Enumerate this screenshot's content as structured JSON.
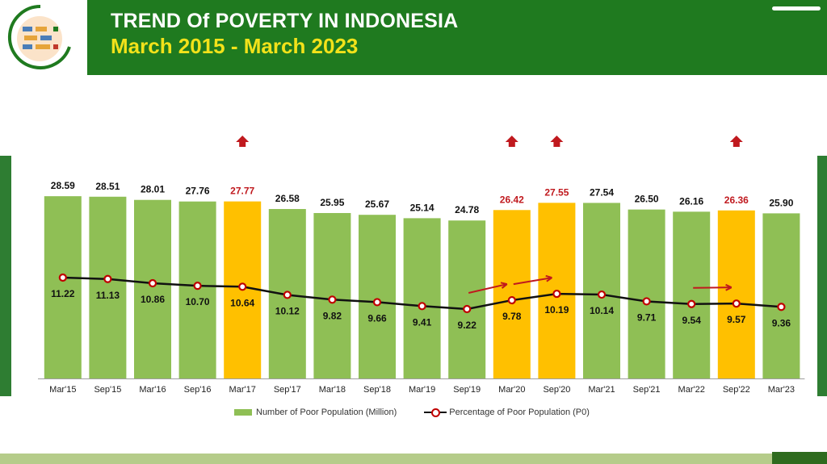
{
  "header": {
    "title": "TREND Of POVERTY IN INDONESIA",
    "subtitle": "March 2015 - March 2023"
  },
  "colors": {
    "header_bg": "#1f7a1f",
    "subtitle": "#f2e21a",
    "bar_normal": "#8fbf55",
    "bar_highlight": "#ffc000",
    "label_highlight": "#c0191e",
    "line": "#111111",
    "marker": "#c00000"
  },
  "chart_data": {
    "type": "bar",
    "title": "TREND Of POVERTY IN INDONESIA",
    "categories": [
      "Mar'15",
      "Sep'15",
      "Mar'16",
      "Sep'16",
      "Mar'17",
      "Sep'17",
      "Mar'18",
      "Sep'18",
      "Mar'19",
      "Sep'19",
      "Mar'20",
      "Sep'20",
      "Mar'21",
      "Sep'21",
      "Mar'22",
      "Sep'22",
      "Mar'23"
    ],
    "series": [
      {
        "name": "Number of Poor Population (Million)",
        "type": "bar",
        "values": [
          28.59,
          28.51,
          28.01,
          27.76,
          27.77,
          26.58,
          25.95,
          25.67,
          25.14,
          24.78,
          26.42,
          27.55,
          27.54,
          26.5,
          26.16,
          26.36,
          25.9
        ],
        "labels": [
          "28.59",
          "28.51",
          "28.01",
          "27.76",
          "27.77",
          "26.58",
          "25.95",
          "25.67",
          "25.14",
          "24.78",
          "26.42",
          "27.55",
          "27.54",
          "26.50",
          "26.16",
          "26.36",
          "25.90"
        ],
        "highlighted": [
          4,
          10,
          11,
          15
        ]
      },
      {
        "name": "Percentage of Poor Population (P0)",
        "type": "line",
        "values": [
          11.22,
          11.13,
          10.86,
          10.7,
          10.64,
          10.12,
          9.82,
          9.66,
          9.41,
          9.22,
          9.78,
          10.19,
          10.14,
          9.71,
          9.54,
          9.57,
          9.36
        ],
        "labels": [
          "11.22",
          "11.13",
          "10.86",
          "10.70",
          "10.64",
          "10.12",
          "9.82",
          "9.66",
          "9.41",
          "9.22",
          "9.78",
          "10.19",
          "10.14",
          "9.71",
          "9.54",
          "9.57",
          "9.36"
        ]
      }
    ],
    "increase_markers": [
      4,
      10,
      11,
      15
    ],
    "trend_arrows": [
      [
        9,
        10
      ],
      [
        10,
        11
      ],
      [
        14,
        15
      ]
    ],
    "legend": [
      "Number of Poor Population (Million)",
      "Percentage of Poor Population (P0)"
    ],
    "legend_position": "bottom"
  }
}
